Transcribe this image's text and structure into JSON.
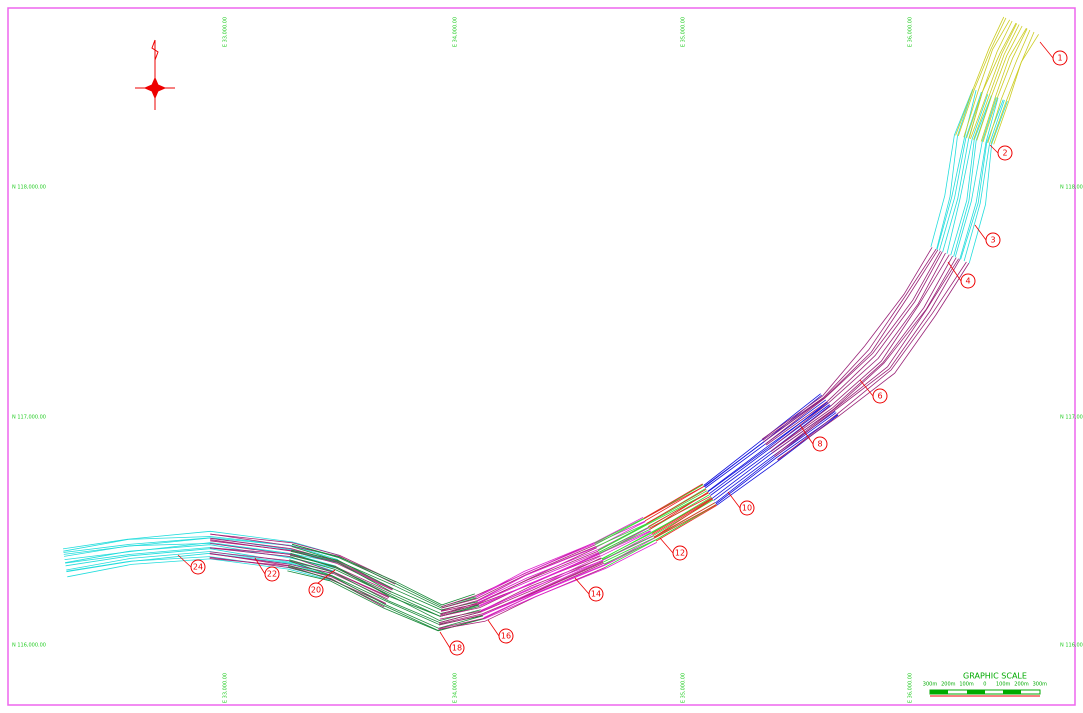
{
  "grid": {
    "eastings": [
      "E 33,000.00",
      "E 34,000.00",
      "E 35,000.00",
      "E 36,000.00"
    ],
    "northings": [
      "N 118,000.00",
      "N 117,000.00",
      "N 116,000.00"
    ]
  },
  "sections": [
    "1",
    "2",
    "3",
    "4",
    "6",
    "8",
    "10",
    "12",
    "14",
    "16",
    "18",
    "20",
    "22",
    "24"
  ],
  "scale": {
    "title": "GRAPHIC SCALE",
    "ticks": [
      "300m",
      "200m",
      "100m",
      "0",
      "100m",
      "200m",
      "300m"
    ]
  }
}
